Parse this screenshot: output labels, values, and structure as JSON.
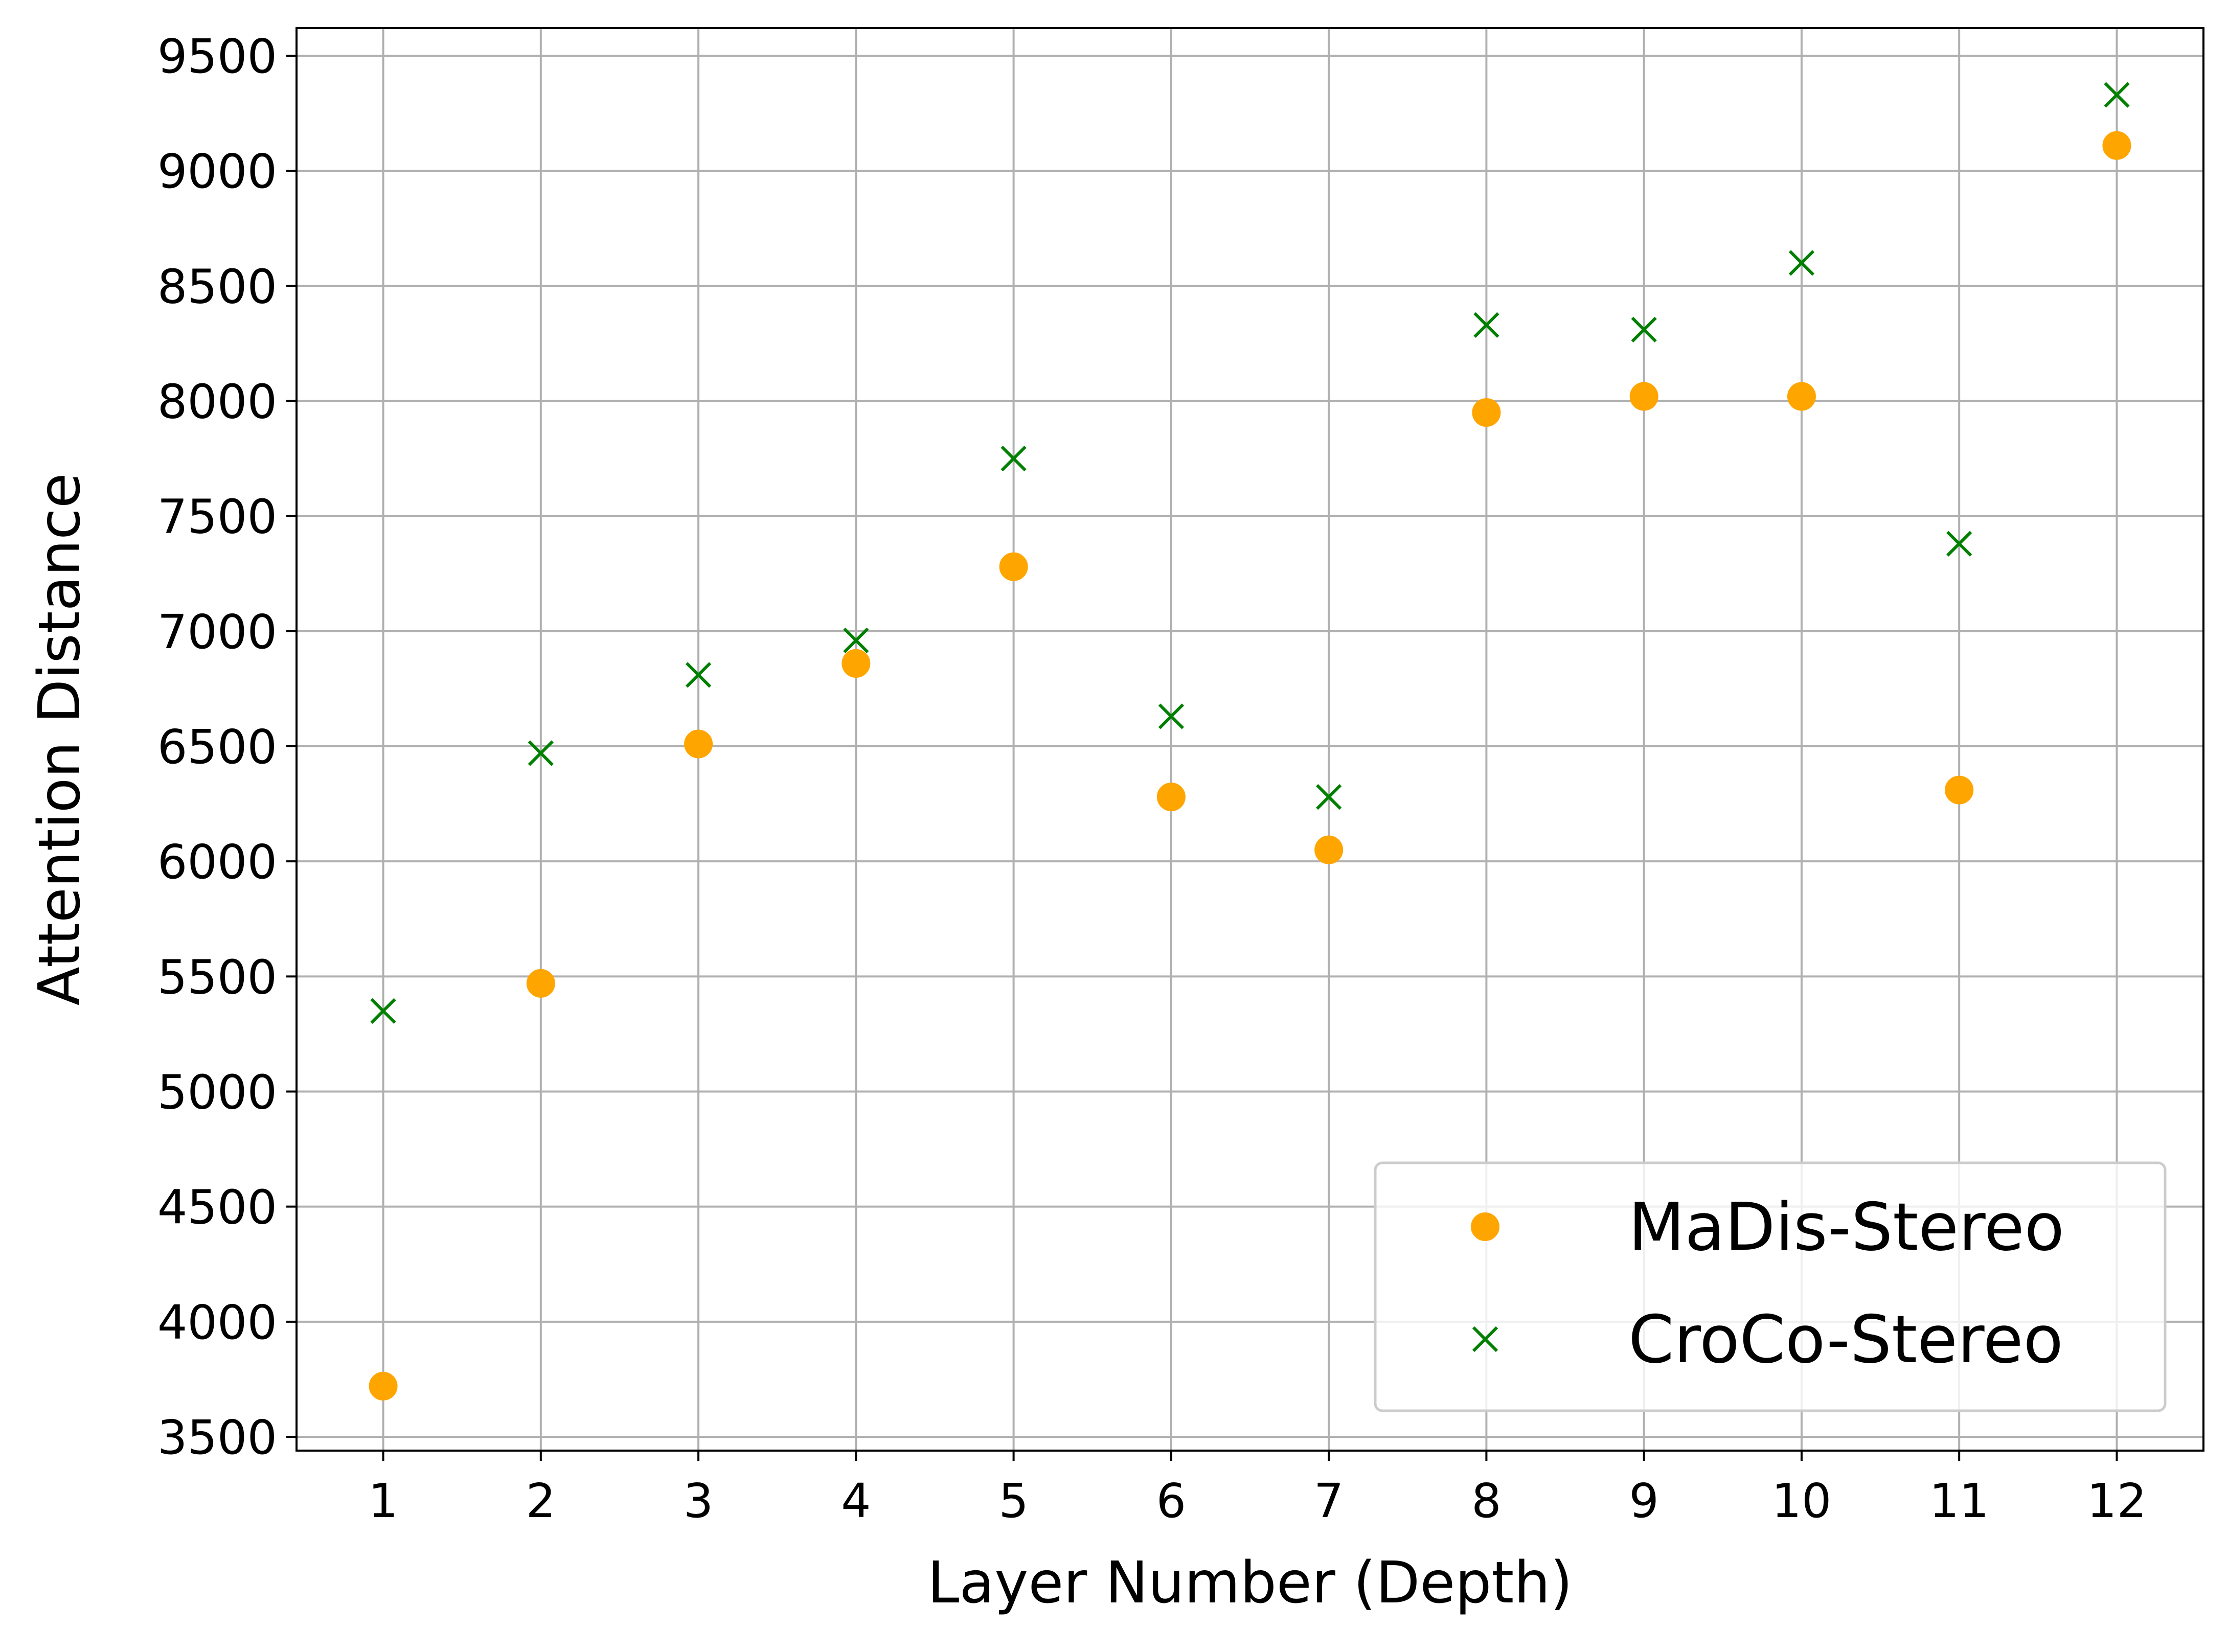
{
  "chart_data": {
    "type": "scatter",
    "title": "",
    "xlabel": "Layer Number (Depth)",
    "ylabel": "Attention Distance",
    "x": [
      1,
      2,
      3,
      4,
      5,
      6,
      7,
      8,
      9,
      10,
      11,
      12
    ],
    "x_ticks": [
      "1",
      "2",
      "3",
      "4",
      "5",
      "6",
      "7",
      "8",
      "9",
      "10",
      "11",
      "12"
    ],
    "y_ticks": [
      "3500",
      "4000",
      "4500",
      "5000",
      "5500",
      "6000",
      "6500",
      "7000",
      "7500",
      "8000",
      "8500",
      "9000",
      "9500"
    ],
    "xlim": [
      0.45,
      12.55
    ],
    "ylim": [
      3440,
      9620
    ],
    "grid": true,
    "legend_position": "bottom-right",
    "series": [
      {
        "name": "MaDis-Stereo",
        "marker": "circle",
        "color": "#FFA500",
        "values": [
          3720,
          5470,
          6510,
          6860,
          7280,
          6280,
          6050,
          7950,
          8020,
          8020,
          6310,
          9110
        ]
      },
      {
        "name": "CroCo-Stereo",
        "marker": "x",
        "color": "#008000",
        "values": [
          5350,
          6470,
          6810,
          6960,
          7750,
          6630,
          6280,
          8330,
          8310,
          8600,
          7380,
          9330
        ]
      }
    ]
  }
}
